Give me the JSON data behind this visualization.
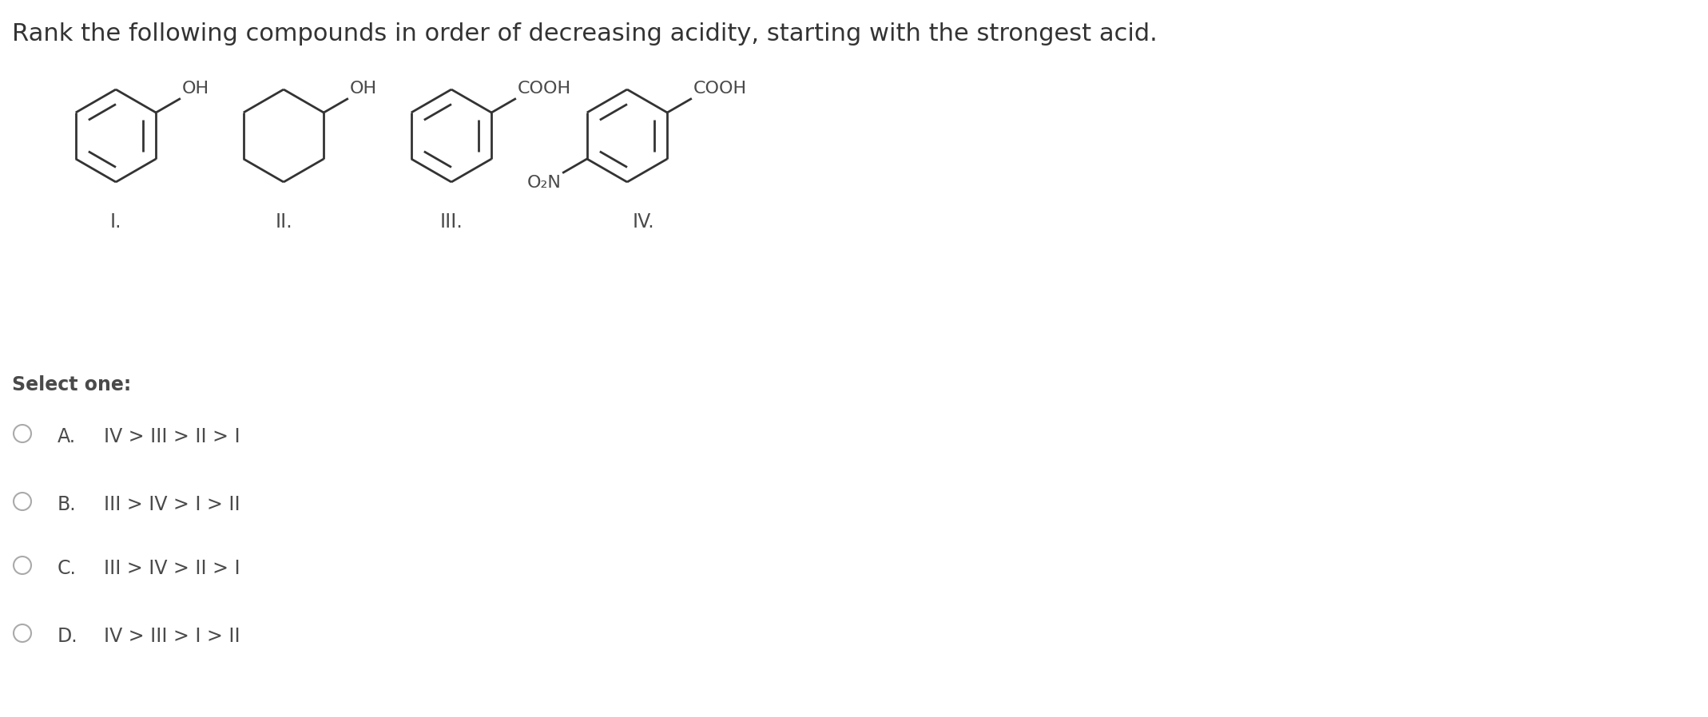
{
  "title": "Rank the following compounds in order of decreasing acidity, starting with the strongest acid.",
  "title_fontsize": 22,
  "title_color": "#333333",
  "background_color": "#ffffff",
  "text_color": "#4a4a4a",
  "select_one": "Select one:",
  "options": [
    {
      "letter": "A.",
      "text": "IV > III > II > I"
    },
    {
      "letter": "B.",
      "text": "III > IV > I > II"
    },
    {
      "letter": "C.",
      "text": "III > IV > II > I"
    },
    {
      "letter": "D.",
      "text": "IV > III > I > II"
    }
  ],
  "line_color": "#333333",
  "line_width": 2.0,
  "font_family": "DejaVu Sans",
  "substituent_fontsize": 16,
  "label_fontsize": 17,
  "select_fontsize": 17,
  "option_fontsize": 17
}
